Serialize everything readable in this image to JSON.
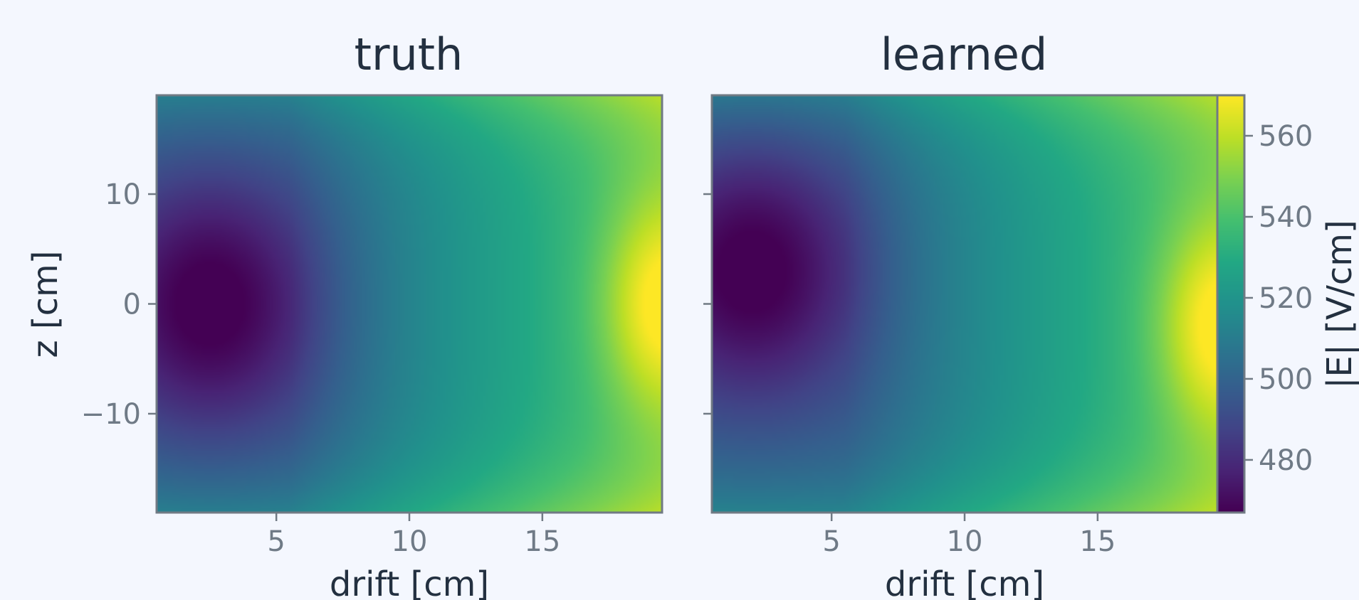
{
  "chart_data": {
    "type": "heatmap",
    "colormap": "viridis",
    "shared_colorbar": true,
    "colorbar": {
      "label": "|E|  [V/cm]",
      "ticks": [
        480,
        500,
        520,
        540,
        560
      ],
      "range": [
        467,
        570
      ]
    },
    "panels": [
      {
        "title": "truth",
        "xlabel": "drift  [cm]",
        "ylabel": "z  [cm]",
        "xlim": [
          0.5,
          19.5
        ],
        "ylim": [
          -19,
          19
        ],
        "xticks": [
          5,
          10,
          15
        ],
        "yticks": [
          10,
          0,
          -10
        ],
        "field": {
          "min_at": [
            2.5,
            0
          ],
          "max_at": [
            19.5,
            0
          ],
          "min_value": 467,
          "max_value": 570
        }
      },
      {
        "title": "learned",
        "xlabel": "drift  [cm]",
        "ylabel": "",
        "xlim": [
          0.5,
          19.5
        ],
        "ylim": [
          -19,
          19
        ],
        "xticks": [
          5,
          10,
          15
        ],
        "yticks": [
          10,
          0,
          -10
        ],
        "field": {
          "min_at": [
            2.0,
            3
          ],
          "max_at": [
            19.5,
            -2
          ],
          "min_value": 467,
          "max_value": 570
        }
      }
    ]
  },
  "tick_labels": {
    "x": [
      "5",
      "10",
      "15"
    ],
    "y": [
      "10",
      "0",
      "−10"
    ],
    "cbar": [
      "480",
      "500",
      "520",
      "540",
      "560"
    ]
  }
}
